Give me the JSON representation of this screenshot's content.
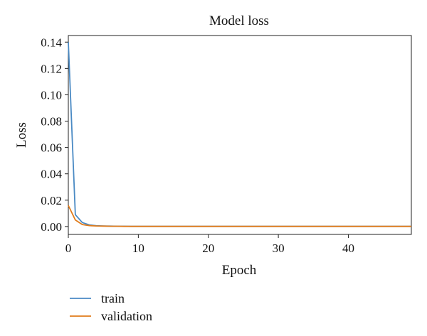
{
  "chart_data": {
    "type": "line",
    "title": "Model loss",
    "xlabel": "Epoch",
    "ylabel": "Loss",
    "xlim": [
      0,
      49
    ],
    "ylim": [
      -0.006,
      0.145
    ],
    "x_ticks": [
      0,
      10,
      20,
      30,
      40
    ],
    "y_ticks": [
      0.0,
      0.02,
      0.04,
      0.06,
      0.08,
      0.1,
      0.12,
      0.14
    ],
    "y_tick_labels": [
      "0.00",
      "0.02",
      "0.04",
      "0.06",
      "0.08",
      "0.10",
      "0.12",
      "0.14"
    ],
    "grid": false,
    "legend_position": "bottom-left, below plot",
    "x": [
      0,
      1,
      2,
      3,
      4,
      5,
      6,
      7,
      8,
      9,
      10,
      11,
      12,
      13,
      14,
      15,
      16,
      17,
      18,
      19,
      20,
      21,
      22,
      23,
      24,
      25,
      26,
      27,
      28,
      29,
      30,
      31,
      32,
      33,
      34,
      35,
      36,
      37,
      38,
      39,
      40,
      41,
      42,
      43,
      44,
      45,
      46,
      47,
      48,
      49
    ],
    "series": [
      {
        "name": "train",
        "color": "#4a8ac4",
        "values": [
          0.14,
          0.009,
          0.003,
          0.0012,
          0.0006,
          0.0004,
          0.0003,
          0.0002,
          0.0002,
          0.0001,
          0.0001,
          0.0001,
          0.0001,
          0.0001,
          0.0001,
          0.0001,
          0.0001,
          0.0001,
          0.0001,
          0.0001,
          0.0001,
          0.0001,
          0.0001,
          0.0001,
          0.0001,
          0.0001,
          0.0001,
          0.0001,
          0.0001,
          0.0001,
          0.0001,
          0.0001,
          0.0001,
          0.0001,
          0.0001,
          0.0001,
          0.0001,
          0.0001,
          0.0001,
          0.0001,
          0.0001,
          0.0001,
          0.0001,
          0.0001,
          0.0001,
          0.0001,
          0.0001,
          0.0001,
          0.0001,
          0.0001
        ]
      },
      {
        "name": "validation",
        "color": "#e07b1a",
        "values": [
          0.016,
          0.005,
          0.0015,
          0.0007,
          0.0004,
          0.0003,
          0.0002,
          0.0002,
          0.0001,
          0.0001,
          0.0001,
          0.0001,
          0.0001,
          0.0001,
          0.0001,
          0.0001,
          0.0001,
          0.0001,
          0.0001,
          0.0001,
          0.0001,
          0.0001,
          0.0001,
          0.0001,
          0.0001,
          0.0001,
          0.0001,
          0.0001,
          0.0001,
          0.0001,
          0.0001,
          0.0001,
          0.0001,
          0.0001,
          0.0001,
          0.0001,
          0.0001,
          0.0001,
          0.0001,
          0.0001,
          0.0001,
          0.0001,
          0.0001,
          0.0001,
          0.0001,
          0.0001,
          0.0001,
          0.0001,
          0.0001,
          0.0001
        ]
      }
    ]
  }
}
